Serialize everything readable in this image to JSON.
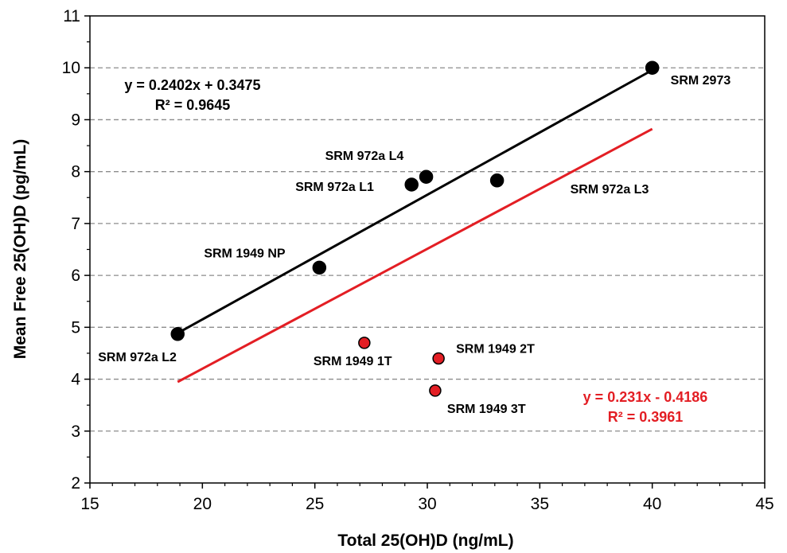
{
  "chart_data": {
    "type": "scatter",
    "xlabel": "Total 25(OH)D  (ng/mL)",
    "ylabel": "Mean Free 25(OH)D  (pg/mL)",
    "xlim": [
      15,
      45
    ],
    "ylim": [
      2,
      11
    ],
    "x_ticks": [
      15,
      20,
      25,
      30,
      35,
      40,
      45
    ],
    "y_ticks": [
      2,
      3,
      4,
      5,
      6,
      7,
      8,
      9,
      10,
      11
    ],
    "grid": "horizontal dashed",
    "series": [
      {
        "color": "#000000",
        "fill": "#000000",
        "points": [
          {
            "label": "SRM 972a  L2",
            "x": 18.9,
            "y": 4.87
          },
          {
            "label": "SRM 1949 NP",
            "x": 25.2,
            "y": 6.15
          },
          {
            "label": "SRM 972a  L1",
            "x": 29.3,
            "y": 7.75
          },
          {
            "label": "SRM 972a  L4",
            "x": 29.95,
            "y": 7.9
          },
          {
            "label": "SRM 972a  L3",
            "x": 33.1,
            "y": 7.83
          },
          {
            "label": "SRM 2973",
            "x": 40.0,
            "y": 10.0
          }
        ],
        "trendline": {
          "slope": 0.2402,
          "intercept": 0.3475,
          "x_range": [
            18.9,
            40.0
          ],
          "equation": "y = 0.2402x + 0.3475",
          "r2": "R² = 0.9645"
        }
      },
      {
        "color": "#e31e24",
        "fill": "#e31e24",
        "points": [
          {
            "label": "SRM 1949 1T",
            "x": 27.2,
            "y": 4.7
          },
          {
            "label": "SRM 1949 2T",
            "x": 30.5,
            "y": 4.4
          },
          {
            "label": "SRM 1949 3T",
            "x": 30.35,
            "y": 3.78
          }
        ],
        "trendline": {
          "slope": 0.231,
          "intercept": -0.4186,
          "x_range": [
            18.9,
            40.0
          ],
          "equation": "y = 0.231x - 0.4186",
          "r2": "R² = 0.3961"
        }
      }
    ]
  }
}
